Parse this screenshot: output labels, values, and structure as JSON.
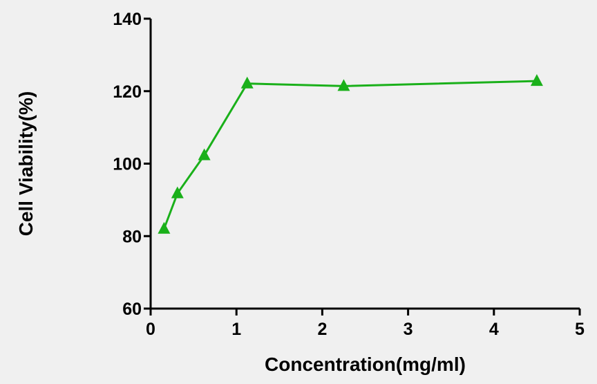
{
  "chart_data": {
    "type": "line",
    "title": "",
    "xlabel": "Concentration(mg/ml)",
    "ylabel": "Cell Viability(%)",
    "xlim": [
      0,
      5
    ],
    "ylim": [
      60,
      140
    ],
    "xticks": [
      0,
      1,
      2,
      3,
      4,
      5
    ],
    "yticks": [
      60,
      80,
      100,
      120,
      140
    ],
    "grid": false,
    "series": [
      {
        "color": "#1ab01a",
        "marker": "triangle",
        "x": [
          0.156,
          0.3125,
          0.625,
          1.125,
          2.25,
          4.5
        ],
        "y": [
          82.0,
          91.8,
          102.3,
          122.1,
          121.4,
          122.8
        ]
      }
    ]
  }
}
